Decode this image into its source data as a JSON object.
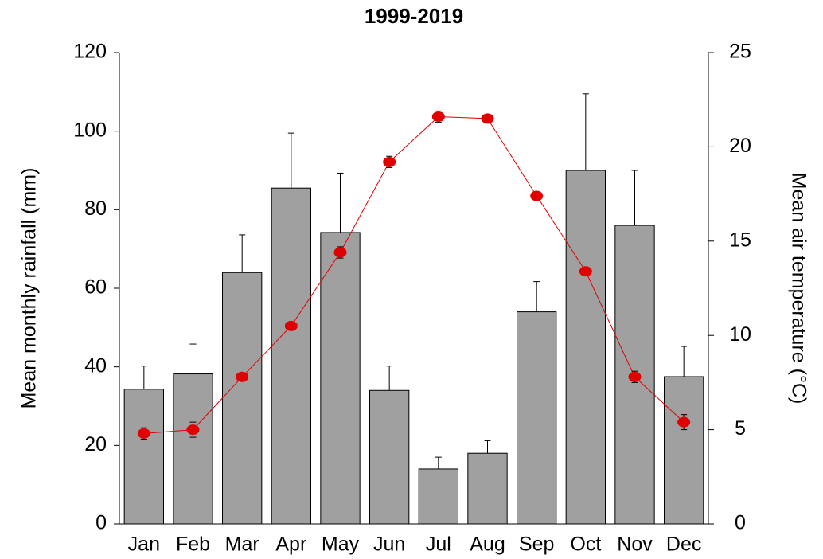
{
  "chart_data": {
    "type": "bar_line",
    "title": "1999-2019",
    "categories": [
      "Jan",
      "Feb",
      "Mar",
      "Apr",
      "May",
      "Jun",
      "Jul",
      "Aug",
      "Sep",
      "Oct",
      "Nov",
      "Dec"
    ],
    "ylabel": "Mean monthly rainfall (mm)",
    "y2label": "Mean air temperature (°C)",
    "ylim": [
      0,
      120
    ],
    "yticks": [
      0,
      20,
      40,
      60,
      80,
      100,
      120
    ],
    "y2lim": [
      0,
      25
    ],
    "y2ticks": [
      0,
      5,
      10,
      15,
      20,
      25
    ],
    "series": [
      {
        "type": "bar",
        "color": "#a0a0a0",
        "values": [
          34.3,
          38.2,
          64,
          85.5,
          74.2,
          34,
          14,
          18,
          54,
          90,
          76,
          37.5
        ],
        "errors": [
          5.9,
          7.6,
          9.6,
          14,
          15.1,
          6.2,
          3,
          3.2,
          7.7,
          19.5,
          14,
          7.7
        ]
      },
      {
        "type": "line",
        "axis": "y2",
        "color": "#e00000",
        "values": [
          4.8,
          5.0,
          7.8,
          10.5,
          14.4,
          19.2,
          21.6,
          21.5,
          17.4,
          13.4,
          7.8,
          5.4
        ],
        "errors": [
          0.3,
          0.4,
          0.2,
          0.2,
          0.3,
          0.3,
          0.3,
          0.2,
          0.2,
          0.2,
          0.3,
          0.4
        ]
      }
    ]
  }
}
